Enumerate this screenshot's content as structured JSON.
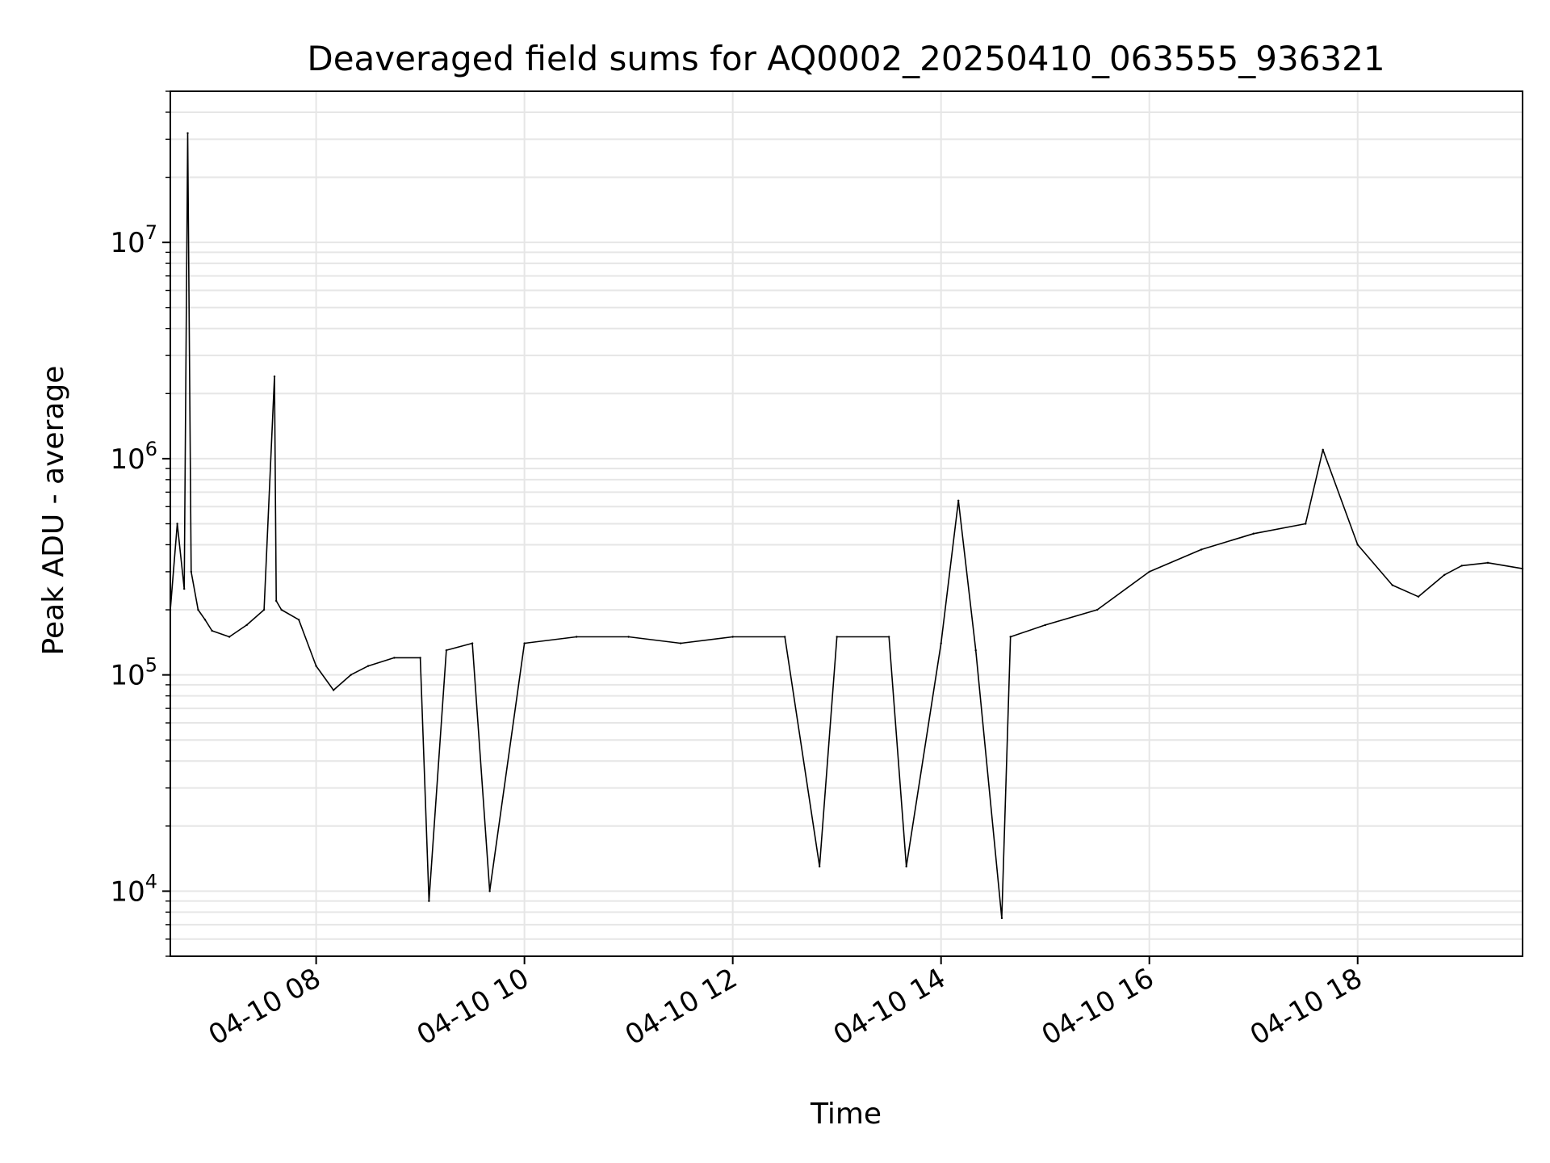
{
  "chart_data": {
    "type": "line",
    "title": "Deaveraged field sums for AQ0002_20250410_063555_936321",
    "xlabel": "Time",
    "ylabel": "Peak ADU - average",
    "y_scale": "log",
    "xlim": [
      "2025-04-10 06:36",
      "2025-04-10 19:35"
    ],
    "ylim": [
      5000,
      50000000
    ],
    "x_ticks": [
      {
        "value": "2025-04-10 08:00",
        "label": "04-10 08"
      },
      {
        "value": "2025-04-10 10:00",
        "label": "04-10 10"
      },
      {
        "value": "2025-04-10 12:00",
        "label": "04-10 12"
      },
      {
        "value": "2025-04-10 14:00",
        "label": "04-10 14"
      },
      {
        "value": "2025-04-10 16:00",
        "label": "04-10 16"
      },
      {
        "value": "2025-04-10 18:00",
        "label": "04-10 18"
      }
    ],
    "y_ticks": [
      {
        "value": 10000,
        "base": "10",
        "exp": "4"
      },
      {
        "value": 100000,
        "base": "10",
        "exp": "5"
      },
      {
        "value": 1000000,
        "base": "10",
        "exp": "6"
      },
      {
        "value": 10000000,
        "base": "10",
        "exp": "7"
      }
    ],
    "grid": true,
    "line_color": "#000000",
    "grid_color": "#e6e6e6",
    "series": [
      {
        "x": [
          "2025-04-10 06:36",
          "2025-04-10 06:40",
          "2025-04-10 06:44",
          "2025-04-10 06:46",
          "2025-04-10 06:48",
          "2025-04-10 06:52",
          "2025-04-10 06:56",
          "2025-04-10 07:00",
          "2025-04-10 07:10",
          "2025-04-10 07:20",
          "2025-04-10 07:30",
          "2025-04-10 07:36",
          "2025-04-10 07:37",
          "2025-04-10 07:40",
          "2025-04-10 07:50",
          "2025-04-10 08:00",
          "2025-04-10 08:10",
          "2025-04-10 08:20",
          "2025-04-10 08:30",
          "2025-04-10 08:45",
          "2025-04-10 09:00",
          "2025-04-10 09:05",
          "2025-04-10 09:15",
          "2025-04-10 09:30",
          "2025-04-10 09:40",
          "2025-04-10 10:00",
          "2025-04-10 10:30",
          "2025-04-10 11:00",
          "2025-04-10 11:30",
          "2025-04-10 12:00",
          "2025-04-10 12:30",
          "2025-04-10 12:50",
          "2025-04-10 13:00",
          "2025-04-10 13:30",
          "2025-04-10 13:40",
          "2025-04-10 14:00",
          "2025-04-10 14:10",
          "2025-04-10 14:20",
          "2025-04-10 14:35",
          "2025-04-10 14:40",
          "2025-04-10 15:00",
          "2025-04-10 15:30",
          "2025-04-10 16:00",
          "2025-04-10 16:30",
          "2025-04-10 17:00",
          "2025-04-10 17:30",
          "2025-04-10 17:40",
          "2025-04-10 18:00",
          "2025-04-10 18:20",
          "2025-04-10 18:35",
          "2025-04-10 18:50",
          "2025-04-10 19:00",
          "2025-04-10 19:15",
          "2025-04-10 19:35"
        ],
        "values": [
          200000,
          500000,
          250000,
          32000000,
          300000,
          200000,
          180000,
          160000,
          150000,
          170000,
          200000,
          2400000,
          220000,
          200000,
          180000,
          110000,
          85000,
          100000,
          110000,
          120000,
          120000,
          9000,
          130000,
          140000,
          10000,
          140000,
          150000,
          150000,
          140000,
          150000,
          150000,
          13000,
          150000,
          150000,
          13000,
          140000,
          640000,
          130000,
          7500,
          150000,
          170000,
          200000,
          300000,
          380000,
          450000,
          500000,
          1100000,
          400000,
          260000,
          230000,
          290000,
          320000,
          330000,
          310000
        ]
      }
    ]
  }
}
